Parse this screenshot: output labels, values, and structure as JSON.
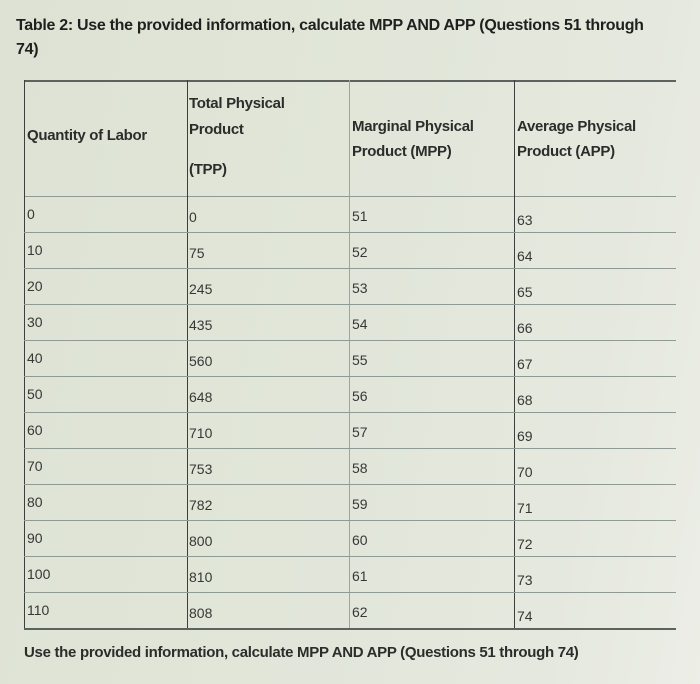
{
  "title": "Table 2: Use the provided information, calculate MPP AND APP (Questions 51 through 74)",
  "table": {
    "headers": {
      "labor": "Quantity of Labor",
      "tpp_line1": "Total Physical",
      "tpp_line2": "Product",
      "tpp_line3": "(TPP)",
      "mpp_line1": "Marginal Physical",
      "mpp_line2": "Product (MPP)",
      "app_line1": "Average Physical",
      "app_line2": "Product (APP)"
    },
    "rows": [
      {
        "labor": "0",
        "tpp": "0",
        "mpp": "51",
        "app": "63"
      },
      {
        "labor": "10",
        "tpp": "75",
        "mpp": "52",
        "app": "64"
      },
      {
        "labor": "20",
        "tpp": "245",
        "mpp": "53",
        "app": "65"
      },
      {
        "labor": "30",
        "tpp": "435",
        "mpp": "54",
        "app": "66"
      },
      {
        "labor": "40",
        "tpp": "560",
        "mpp": "55",
        "app": "67"
      },
      {
        "labor": "50",
        "tpp": "648",
        "mpp": "56",
        "app": "68"
      },
      {
        "labor": "60",
        "tpp": "710",
        "mpp": "57",
        "app": "69"
      },
      {
        "labor": "70",
        "tpp": "753",
        "mpp": "58",
        "app": "70"
      },
      {
        "labor": "80",
        "tpp": "782",
        "mpp": "59",
        "app": "71"
      },
      {
        "labor": "90",
        "tpp": "800",
        "mpp": "60",
        "app": "72"
      },
      {
        "labor": "100",
        "tpp": "810",
        "mpp": "61",
        "app": "73"
      },
      {
        "labor": "110",
        "tpp": "808",
        "mpp": "62",
        "app": "74"
      }
    ]
  },
  "footer": "Use the provided information, calculate MPP AND APP (Questions 51 through 74)"
}
